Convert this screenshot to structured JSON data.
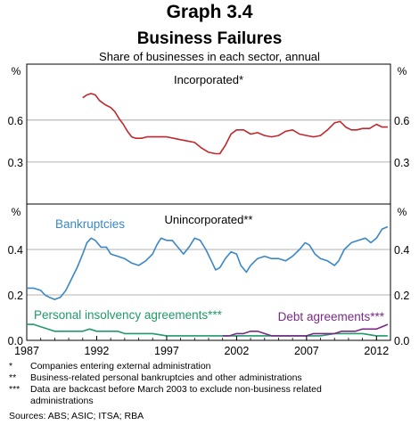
{
  "header": {
    "graph_number": "Graph 3.4",
    "title": "Business Failures",
    "subtitle": "Share of businesses in each sector, annual"
  },
  "chart_data": [
    {
      "type": "line",
      "title": "Incorporated*",
      "ylabel": "%",
      "ylim": [
        0,
        1.0
      ],
      "yticks": [
        0.3,
        0.6
      ],
      "xlim": [
        1987,
        2013
      ],
      "grid": true,
      "series": [
        {
          "name": "",
          "color": "#c0282d",
          "points": [
            [
              1991.0,
              0.76
            ],
            [
              1991.3,
              0.78
            ],
            [
              1991.6,
              0.79
            ],
            [
              1991.9,
              0.78
            ],
            [
              1992.2,
              0.74
            ],
            [
              1992.6,
              0.71
            ],
            [
              1993.0,
              0.69
            ],
            [
              1993.3,
              0.66
            ],
            [
              1993.6,
              0.61
            ],
            [
              1993.9,
              0.57
            ],
            [
              1994.2,
              0.52
            ],
            [
              1994.5,
              0.48
            ],
            [
              1994.8,
              0.47
            ],
            [
              1995.2,
              0.47
            ],
            [
              1995.6,
              0.48
            ],
            [
              1996.0,
              0.48
            ],
            [
              1996.5,
              0.48
            ],
            [
              1997.0,
              0.48
            ],
            [
              1997.5,
              0.47
            ],
            [
              1998.0,
              0.46
            ],
            [
              1998.5,
              0.45
            ],
            [
              1999.0,
              0.44
            ],
            [
              1999.5,
              0.4
            ],
            [
              2000.0,
              0.37
            ],
            [
              2000.5,
              0.36
            ],
            [
              2000.8,
              0.36
            ],
            [
              2001.2,
              0.42
            ],
            [
              2001.6,
              0.5
            ],
            [
              2002.0,
              0.53
            ],
            [
              2002.5,
              0.53
            ],
            [
              2003.0,
              0.5
            ],
            [
              2003.5,
              0.51
            ],
            [
              2004.0,
              0.49
            ],
            [
              2004.5,
              0.48
            ],
            [
              2005.0,
              0.49
            ],
            [
              2005.5,
              0.52
            ],
            [
              2006.0,
              0.53
            ],
            [
              2006.5,
              0.5
            ],
            [
              2007.0,
              0.49
            ],
            [
              2007.5,
              0.48
            ],
            [
              2008.0,
              0.49
            ],
            [
              2008.5,
              0.53
            ],
            [
              2009.0,
              0.58
            ],
            [
              2009.4,
              0.59
            ],
            [
              2009.8,
              0.55
            ],
            [
              2010.2,
              0.53
            ],
            [
              2010.6,
              0.53
            ],
            [
              2011.0,
              0.54
            ],
            [
              2011.5,
              0.54
            ],
            [
              2012.0,
              0.57
            ],
            [
              2012.4,
              0.55
            ],
            [
              2012.8,
              0.55
            ]
          ]
        }
      ]
    },
    {
      "type": "line",
      "title": "Unincorporated**",
      "ylabel": "%",
      "ylim": [
        0,
        0.6
      ],
      "yticks": [
        0.0,
        0.2,
        0.4
      ],
      "xlim": [
        1987,
        2013
      ],
      "xticks": [
        "1987",
        "1992",
        "1997",
        "2002",
        "2007",
        "2012"
      ],
      "xtick_values": [
        1987,
        1992,
        1997,
        2002,
        2007,
        2012
      ],
      "grid": true,
      "series": [
        {
          "name": "Bankruptcies",
          "color": "#3a87c8",
          "points": [
            [
              1987.0,
              0.23
            ],
            [
              1987.5,
              0.23
            ],
            [
              1988.0,
              0.22
            ],
            [
              1988.3,
              0.2
            ],
            [
              1988.6,
              0.19
            ],
            [
              1989.0,
              0.18
            ],
            [
              1989.4,
              0.19
            ],
            [
              1989.8,
              0.22
            ],
            [
              1990.2,
              0.27
            ],
            [
              1990.6,
              0.32
            ],
            [
              1991.0,
              0.38
            ],
            [
              1991.3,
              0.43
            ],
            [
              1991.6,
              0.45
            ],
            [
              1991.9,
              0.44
            ],
            [
              1992.3,
              0.41
            ],
            [
              1992.7,
              0.41
            ],
            [
              1993.0,
              0.38
            ],
            [
              1993.5,
              0.37
            ],
            [
              1994.0,
              0.36
            ],
            [
              1994.5,
              0.34
            ],
            [
              1995.0,
              0.33
            ],
            [
              1995.5,
              0.35
            ],
            [
              1996.0,
              0.38
            ],
            [
              1996.3,
              0.42
            ],
            [
              1996.6,
              0.45
            ],
            [
              1997.0,
              0.44
            ],
            [
              1997.4,
              0.44
            ],
            [
              1997.8,
              0.41
            ],
            [
              1998.2,
              0.38
            ],
            [
              1998.6,
              0.41
            ],
            [
              1999.0,
              0.45
            ],
            [
              1999.4,
              0.44
            ],
            [
              1999.8,
              0.4
            ],
            [
              2000.2,
              0.35
            ],
            [
              2000.5,
              0.31
            ],
            [
              2000.8,
              0.32
            ],
            [
              2001.2,
              0.36
            ],
            [
              2001.6,
              0.39
            ],
            [
              2002.0,
              0.38
            ],
            [
              2002.3,
              0.33
            ],
            [
              2002.7,
              0.3
            ],
            [
              2003.0,
              0.33
            ],
            [
              2003.5,
              0.36
            ],
            [
              2004.0,
              0.37
            ],
            [
              2004.5,
              0.36
            ],
            [
              2005.0,
              0.36
            ],
            [
              2005.5,
              0.35
            ],
            [
              2006.0,
              0.37
            ],
            [
              2006.5,
              0.4
            ],
            [
              2006.9,
              0.43
            ],
            [
              2007.2,
              0.42
            ],
            [
              2007.6,
              0.38
            ],
            [
              2008.0,
              0.36
            ],
            [
              2008.5,
              0.35
            ],
            [
              2009.0,
              0.33
            ],
            [
              2009.3,
              0.35
            ],
            [
              2009.7,
              0.4
            ],
            [
              2010.2,
              0.43
            ],
            [
              2010.7,
              0.44
            ],
            [
              2011.2,
              0.45
            ],
            [
              2011.6,
              0.43
            ],
            [
              2012.0,
              0.45
            ],
            [
              2012.4,
              0.49
            ],
            [
              2012.8,
              0.5
            ]
          ]
        },
        {
          "name": "Personal insolvency agreements***",
          "color": "#1f9a68",
          "points": [
            [
              1987.0,
              0.07
            ],
            [
              1987.5,
              0.07
            ],
            [
              1988.0,
              0.06
            ],
            [
              1988.5,
              0.05
            ],
            [
              1989.0,
              0.04
            ],
            [
              1989.5,
              0.04
            ],
            [
              1990.0,
              0.04
            ],
            [
              1990.5,
              0.04
            ],
            [
              1991.0,
              0.04
            ],
            [
              1991.5,
              0.05
            ],
            [
              1992.0,
              0.04
            ],
            [
              1992.5,
              0.04
            ],
            [
              1993.0,
              0.04
            ],
            [
              1993.5,
              0.04
            ],
            [
              1994.0,
              0.03
            ],
            [
              1994.5,
              0.03
            ],
            [
              1995.0,
              0.03
            ],
            [
              1996.0,
              0.03
            ],
            [
              1997.0,
              0.02
            ],
            [
              1998.0,
              0.02
            ],
            [
              1999.0,
              0.02
            ],
            [
              2000.0,
              0.02
            ],
            [
              2001.0,
              0.02
            ],
            [
              2002.0,
              0.02
            ],
            [
              2003.0,
              0.02
            ],
            [
              2004.0,
              0.02
            ],
            [
              2005.0,
              0.02
            ],
            [
              2006.0,
              0.02
            ],
            [
              2007.0,
              0.02
            ],
            [
              2008.0,
              0.02
            ],
            [
              2009.0,
              0.03
            ],
            [
              2010.0,
              0.03
            ],
            [
              2011.0,
              0.03
            ],
            [
              2012.0,
              0.02
            ],
            [
              2012.8,
              0.02
            ]
          ]
        },
        {
          "name": "Debt agreements***",
          "color": "#7a2a86",
          "points": [
            [
              2001.0,
              0.02
            ],
            [
              2001.5,
              0.02
            ],
            [
              2002.0,
              0.03
            ],
            [
              2002.5,
              0.03
            ],
            [
              2003.0,
              0.04
            ],
            [
              2003.5,
              0.04
            ],
            [
              2004.0,
              0.03
            ],
            [
              2004.5,
              0.02
            ],
            [
              2005.0,
              0.02
            ],
            [
              2005.5,
              0.02
            ],
            [
              2006.0,
              0.02
            ],
            [
              2006.5,
              0.02
            ],
            [
              2007.0,
              0.02
            ],
            [
              2007.5,
              0.03
            ],
            [
              2008.0,
              0.03
            ],
            [
              2008.5,
              0.03
            ],
            [
              2009.0,
              0.03
            ],
            [
              2009.5,
              0.04
            ],
            [
              2010.0,
              0.04
            ],
            [
              2010.5,
              0.04
            ],
            [
              2011.0,
              0.05
            ],
            [
              2011.5,
              0.05
            ],
            [
              2012.0,
              0.05
            ],
            [
              2012.4,
              0.06
            ],
            [
              2012.8,
              0.07
            ]
          ]
        }
      ]
    }
  ],
  "footnotes": [
    {
      "mark": "*",
      "text": "Companies entering external administration"
    },
    {
      "mark": "**",
      "text": "Business-related personal bankruptcies and other administrations"
    },
    {
      "mark": "***",
      "text": "Data are backcast before March 2003 to exclude non-business related administrations"
    }
  ],
  "sources": "Sources: ABS; ASIC; ITSA; RBA"
}
